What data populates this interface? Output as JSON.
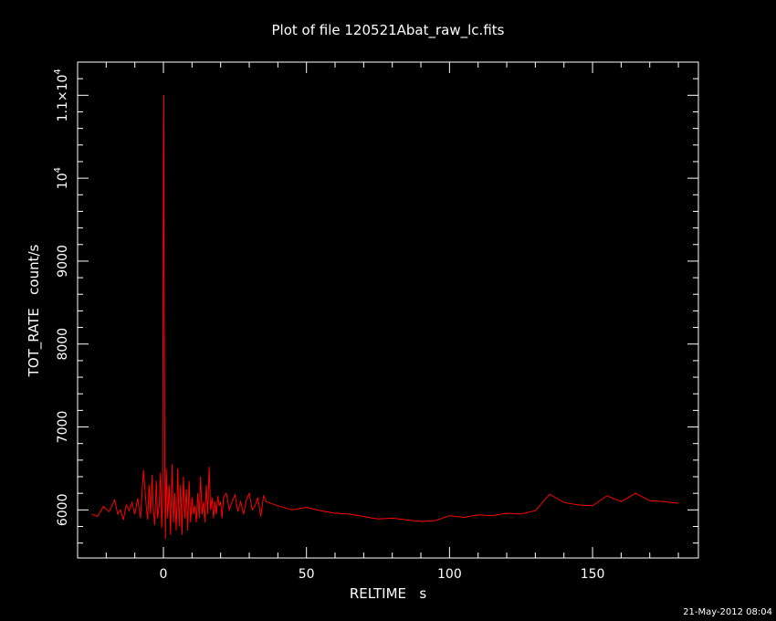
{
  "chart_data": {
    "type": "line",
    "title": "Plot of file 120521Abat_raw_lc.fits",
    "xlabel": "RELTIME   s",
    "ylabel": "TOT_RATE   count/s",
    "xlim": [
      -30,
      187
    ],
    "ylim": [
      5420,
      11400
    ],
    "x_ticks": [
      0,
      50,
      100,
      150
    ],
    "x_tick_labels": [
      "0",
      "50",
      "100",
      "150"
    ],
    "y_ticks": [
      6000,
      7000,
      8000,
      9000
    ],
    "y_tick_labels": [
      "6000",
      "7000",
      "8000",
      "9000"
    ],
    "y_sci_ticks": [
      {
        "value": 10000,
        "mantissa": "10",
        "exponent": "4"
      },
      {
        "value": 11000,
        "mantissa": "1.1×10",
        "exponent": "4"
      }
    ],
    "grid": false,
    "background": "#000000",
    "axis_color": "#ffffff",
    "series": [
      {
        "color": "#ff0000",
        "x": [
          -25,
          -23,
          -21,
          -19,
          -17,
          -16,
          -15,
          -14,
          -13,
          -12,
          -11,
          -10,
          -9,
          -8,
          -7,
          -6,
          -5.5,
          -5,
          -4.5,
          -4,
          -3.5,
          -3,
          -2.5,
          -2,
          -1.5,
          -1,
          -0.6,
          -0.3,
          0,
          0.15,
          0.3,
          0.5,
          0.7,
          1,
          1.5,
          2,
          2.5,
          3,
          3.5,
          4,
          4.5,
          5,
          5.5,
          6,
          6.5,
          7,
          7.5,
          8,
          8.5,
          9,
          9.5,
          10,
          10.5,
          11,
          11.5,
          12,
          12.5,
          13,
          13.5,
          14,
          14.5,
          15,
          15.5,
          16,
          16.5,
          17,
          17.5,
          18,
          18.5,
          19,
          19.5,
          20,
          20.5,
          21,
          22,
          23,
          24,
          25,
          26,
          27,
          28,
          29,
          30,
          31,
          32,
          33,
          34,
          35,
          36,
          40,
          45,
          50,
          55,
          60,
          65,
          70,
          75,
          80,
          85,
          90,
          95,
          100,
          105,
          110,
          115,
          120,
          125,
          130,
          135,
          140,
          145,
          150,
          155,
          160,
          165,
          170,
          175,
          180
        ],
        "y": [
          5950,
          5920,
          6040,
          5980,
          6120,
          5950,
          6000,
          5880,
          6060,
          5990,
          6090,
          5950,
          6140,
          5900,
          6480,
          6050,
          5880,
          6300,
          5950,
          6420,
          6000,
          5820,
          6350,
          5900,
          6050,
          6450,
          5780,
          6100,
          10300,
          11000,
          8500,
          6500,
          5650,
          6500,
          5900,
          6300,
          5700,
          6550,
          5850,
          6200,
          5750,
          6500,
          5800,
          6300,
          5700,
          6400,
          5900,
          6250,
          5750,
          6350,
          5850,
          6150,
          5950,
          6050,
          5850,
          6200,
          5900,
          6400,
          5950,
          6100,
          5850,
          6300,
          5950,
          6520,
          6000,
          6150,
          5900,
          6100,
          5950,
          6170,
          6050,
          6100,
          5900,
          6150,
          6200,
          6000,
          6100,
          6180,
          5980,
          6100,
          5950,
          6120,
          6200,
          6000,
          6050,
          6150,
          5920,
          6170,
          6100,
          6050,
          6000,
          6030,
          5990,
          5960,
          5950,
          5920,
          5890,
          5900,
          5880,
          5860,
          5870,
          5930,
          5910,
          5940,
          5930,
          5960,
          5950,
          5990,
          6190,
          6090,
          6060,
          6050,
          6170,
          6100,
          6200,
          6110,
          6100,
          6080
        ]
      }
    ]
  },
  "footer": {
    "timestamp": "21-May-2012 08:04"
  }
}
